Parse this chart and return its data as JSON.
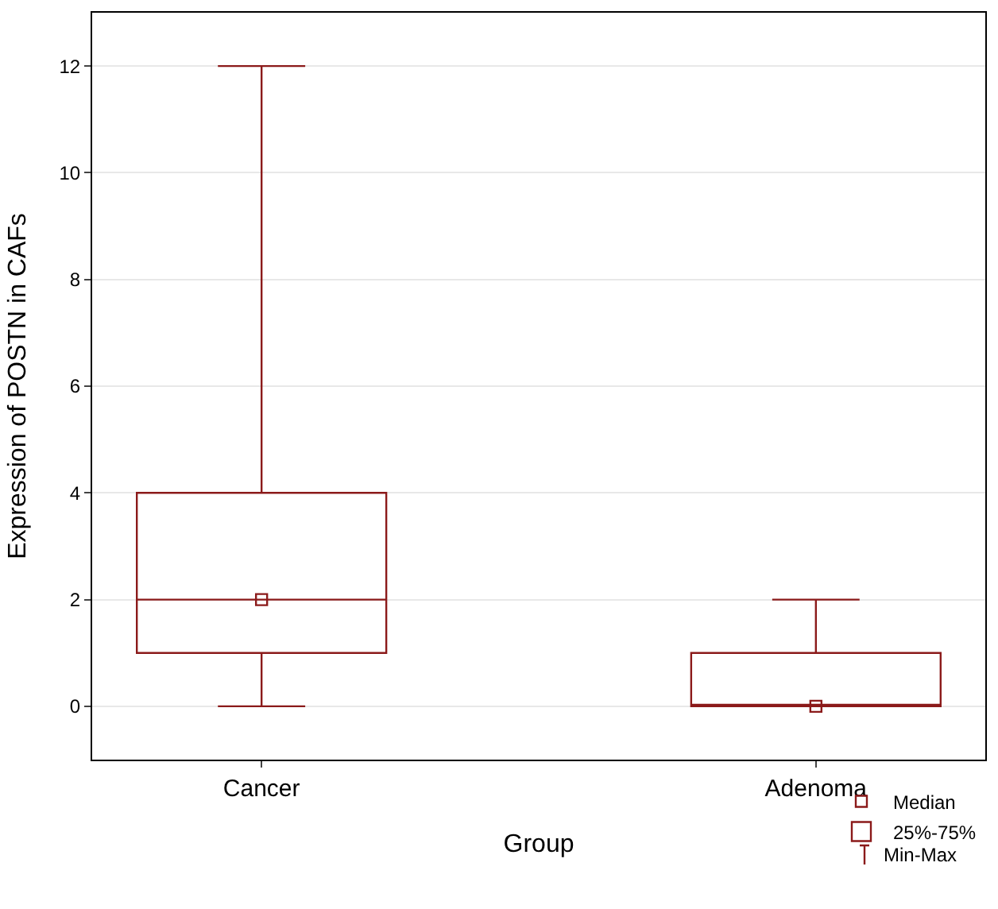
{
  "chart_data": {
    "type": "box",
    "xlabel": "Group",
    "ylabel": "Expression of POSTN in CAFs",
    "categories": [
      "Cancer",
      "Adenoma"
    ],
    "series": [
      {
        "name": "Median",
        "type": "scatter",
        "x": [
          "Cancer",
          "Adenoma"
        ],
        "values": [
          2,
          0
        ],
        "color": "#8b1a1a"
      },
      {
        "name": "25%-75%",
        "color": "#8b1a1a",
        "boxes": [
          {
            "low": 0,
            "q1": 1,
            "median": 2,
            "q3": 4,
            "high": 12
          },
          {
            "low": 0,
            "q1": 0,
            "median": 0,
            "q3": 1,
            "high": 2
          }
        ]
      }
    ],
    "ylim": [
      -1,
      13
    ],
    "yticks": [
      0,
      2,
      4,
      6,
      8,
      10,
      12
    ],
    "grid": true,
    "marker": "square",
    "legend": "bottom right",
    "annotations": [
      "Min-Max"
    ]
  }
}
